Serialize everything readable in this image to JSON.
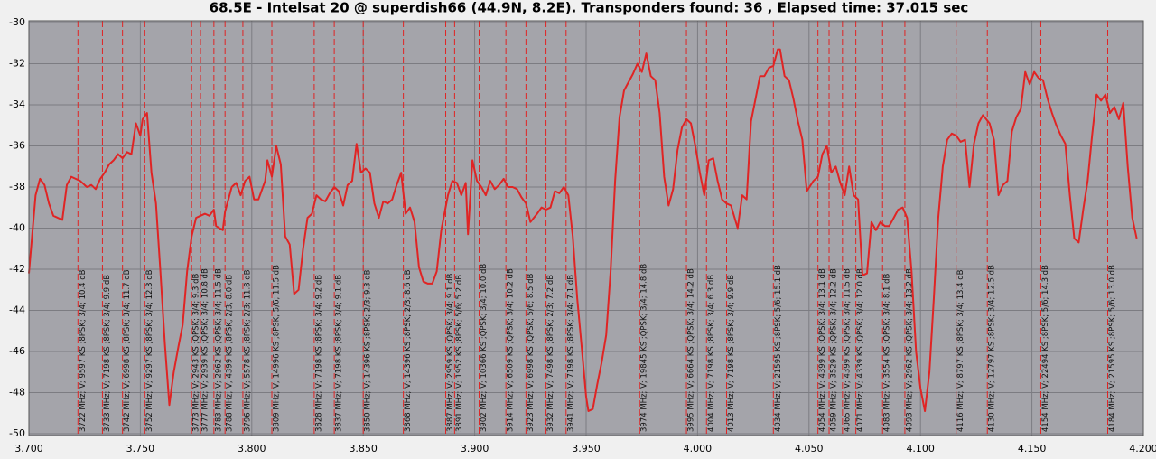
{
  "chart_data": {
    "type": "line",
    "title": "68.5E - Intelsat 20 @ superdish66 (44.9N, 8.2E). Transponders found: 36 , Elapsed time: 37.015 sec",
    "color": "#e02424",
    "grid": true,
    "xlim": [
      3.7,
      4.2
    ],
    "ylim": [
      -50,
      -30
    ],
    "xticks": [
      {
        "value": 3.7,
        "label": "3.700"
      },
      {
        "value": 3.75,
        "label": "3.750"
      },
      {
        "value": 3.8,
        "label": "3.800"
      },
      {
        "value": 3.85,
        "label": "3.850"
      },
      {
        "value": 3.9,
        "label": "3.900"
      },
      {
        "value": 3.95,
        "label": "3.950"
      },
      {
        "value": 4.0,
        "label": "4.000"
      },
      {
        "value": 4.05,
        "label": "4.050"
      },
      {
        "value": 4.1,
        "label": "4.100"
      },
      {
        "value": 4.15,
        "label": "4.150"
      },
      {
        "value": 4.2,
        "label": "4.200"
      }
    ],
    "yticks": [
      -30,
      -32,
      -34,
      -36,
      -38,
      -40,
      -42,
      -44,
      -46,
      -48,
      -50
    ],
    "x": [
      3.7,
      3.703,
      3.705,
      3.707,
      3.709,
      3.711,
      3.715,
      3.717,
      3.719,
      3.721,
      3.723,
      3.726,
      3.728,
      3.73,
      3.732,
      3.734,
      3.736,
      3.738,
      3.74,
      3.742,
      3.744,
      3.746,
      3.748,
      3.75,
      3.751,
      3.753,
      3.755,
      3.757,
      3.759,
      3.761,
      3.763,
      3.765,
      3.767,
      3.769,
      3.771,
      3.773,
      3.775,
      3.777,
      3.779,
      3.781,
      3.783,
      3.784,
      3.787,
      3.788,
      3.791,
      3.793,
      3.795,
      3.797,
      3.799,
      3.801,
      3.803,
      3.806,
      3.807,
      3.809,
      3.811,
      3.813,
      3.815,
      3.817,
      3.819,
      3.821,
      3.823,
      3.825,
      3.827,
      3.829,
      3.831,
      3.833,
      3.835,
      3.837,
      3.839,
      3.841,
      3.843,
      3.845,
      3.847,
      3.849,
      3.851,
      3.853,
      3.855,
      3.857,
      3.859,
      3.861,
      3.863,
      3.865,
      3.867,
      3.869,
      3.871,
      3.873,
      3.875,
      3.877,
      3.879,
      3.881,
      3.883,
      3.885,
      3.888,
      3.89,
      3.892,
      3.894,
      3.896,
      3.897,
      3.899,
      3.901,
      3.903,
      3.905,
      3.907,
      3.909,
      3.911,
      3.913,
      3.915,
      3.917,
      3.919,
      3.921,
      3.923,
      3.925,
      3.928,
      3.93,
      3.932,
      3.934,
      3.936,
      3.938,
      3.94,
      3.942,
      3.944,
      3.946,
      3.948,
      3.95,
      3.951,
      3.953,
      3.955,
      3.957,
      3.959,
      3.961,
      3.963,
      3.965,
      3.967,
      3.969,
      3.971,
      3.973,
      3.975,
      3.977,
      3.979,
      3.981,
      3.983,
      3.985,
      3.987,
      3.989,
      3.991,
      3.993,
      3.995,
      3.997,
      3.999,
      4.001,
      4.003,
      4.005,
      4.007,
      4.009,
      4.011,
      4.013,
      4.015,
      4.018,
      4.02,
      4.022,
      4.024,
      4.026,
      4.028,
      4.03,
      4.032,
      4.034,
      4.036,
      4.037,
      4.039,
      4.041,
      4.043,
      4.045,
      4.047,
      4.049,
      4.052,
      4.054,
      4.056,
      4.058,
      4.06,
      4.062,
      4.064,
      4.066,
      4.068,
      4.07,
      4.072,
      4.074,
      4.076,
      4.078,
      4.08,
      4.082,
      4.084,
      4.086,
      4.088,
      4.09,
      4.092,
      4.094,
      4.096,
      4.098,
      4.1,
      4.102,
      4.104,
      4.106,
      4.108,
      4.11,
      4.112,
      4.114,
      4.116,
      4.118,
      4.12,
      4.122,
      4.124,
      4.126,
      4.128,
      4.131,
      4.133,
      4.135,
      4.137,
      4.139,
      4.141,
      4.143,
      4.145,
      4.147,
      4.149,
      4.151,
      4.153,
      4.155,
      4.157,
      4.159,
      4.161,
      4.163,
      4.165,
      4.167,
      4.169,
      4.171,
      4.173,
      4.175,
      4.177,
      4.179,
      4.181,
      4.183,
      4.185,
      4.187,
      4.189,
      4.191,
      4.193,
      4.195,
      4.197
    ],
    "values": [
      -42.2,
      -38.4,
      -37.6,
      -37.9,
      -38.8,
      -39.4,
      -39.6,
      -37.9,
      -37.5,
      -37.6,
      -37.7,
      -38.0,
      -37.9,
      -38.1,
      -37.6,
      -37.3,
      -36.9,
      -36.7,
      -36.4,
      -36.6,
      -36.3,
      -36.4,
      -34.9,
      -35.5,
      -34.7,
      -34.4,
      -37.3,
      -38.8,
      -42.1,
      -45.6,
      -48.6,
      -47.0,
      -45.8,
      -44.7,
      -42.1,
      -40.4,
      -39.5,
      -39.4,
      -39.3,
      -39.4,
      -39.1,
      -39.9,
      -40.1,
      -39.2,
      -38.0,
      -37.8,
      -38.4,
      -37.7,
      -37.5,
      -38.6,
      -38.6,
      -37.7,
      -36.7,
      -37.5,
      -36.0,
      -36.9,
      -40.4,
      -40.8,
      -43.2,
      -43.0,
      -41.0,
      -39.5,
      -39.3,
      -38.4,
      -38.6,
      -38.7,
      -38.3,
      -38.0,
      -38.2,
      -38.9,
      -37.9,
      -37.7,
      -35.9,
      -37.3,
      -37.1,
      -37.3,
      -38.8,
      -39.5,
      -38.7,
      -38.8,
      -38.6,
      -37.9,
      -37.3,
      -39.3,
      -39.0,
      -39.7,
      -41.9,
      -42.6,
      -42.7,
      -42.7,
      -42.1,
      -40.1,
      -38.4,
      -37.7,
      -37.8,
      -38.4,
      -37.8,
      -40.3,
      -36.7,
      -37.7,
      -38.0,
      -38.4,
      -37.7,
      -38.1,
      -37.9,
      -37.6,
      -38.0,
      -38.0,
      -38.1,
      -38.5,
      -38.8,
      -39.7,
      -39.3,
      -39.0,
      -39.1,
      -39.0,
      -38.2,
      -38.3,
      -38.0,
      -38.4,
      -40.4,
      -43.4,
      -45.8,
      -48.2,
      -48.9,
      -48.8,
      -47.6,
      -46.5,
      -45.2,
      -42.1,
      -37.7,
      -34.6,
      -33.3,
      -32.9,
      -32.5,
      -32.0,
      -32.4,
      -31.5,
      -32.6,
      -32.8,
      -34.4,
      -37.5,
      -38.9,
      -38.1,
      -36.2,
      -35.1,
      -34.7,
      -34.9,
      -36.0,
      -37.3,
      -38.4,
      -36.7,
      -36.6,
      -37.7,
      -38.6,
      -38.8,
      -38.9,
      -40.0,
      -38.4,
      -38.6,
      -34.8,
      -33.7,
      -32.6,
      -32.6,
      -32.2,
      -32.1,
      -31.3,
      -31.3,
      -32.6,
      -32.8,
      -33.7,
      -34.8,
      -35.7,
      -38.2,
      -37.7,
      -37.5,
      -36.4,
      -36.0,
      -37.3,
      -37.0,
      -37.8,
      -38.4,
      -37.0,
      -38.4,
      -38.6,
      -42.3,
      -42.2,
      -39.7,
      -40.1,
      -39.7,
      -39.9,
      -39.9,
      -39.5,
      -39.1,
      -39.0,
      -39.5,
      -42.1,
      -46.0,
      -47.8,
      -48.9,
      -47.0,
      -43.4,
      -39.5,
      -37.0,
      -35.7,
      -35.4,
      -35.5,
      -35.8,
      -35.7,
      -38.0,
      -35.9,
      -34.9,
      -34.5,
      -34.9,
      -35.7,
      -38.4,
      -37.9,
      -37.7,
      -35.3,
      -34.6,
      -34.2,
      -32.4,
      -33.0,
      -32.4,
      -32.7,
      -32.8,
      -33.7,
      -34.4,
      -35.0,
      -35.5,
      -35.9,
      -38.4,
      -40.5,
      -40.7,
      -39.1,
      -37.7,
      -35.5,
      -33.5,
      -33.8,
      -33.5,
      -34.4,
      -34.1,
      -34.7,
      -33.9,
      -37.0,
      -39.5,
      -40.5
    ],
    "transponders": [
      {
        "x": 3.722,
        "label": "3722 MHz; V; 9597 KS ;8PSK; 3/4; 10.4 dB"
      },
      {
        "x": 3.733,
        "label": "3733 MHz; V; 7198 KS ;8PSK; 3/4; 9.9 dB"
      },
      {
        "x": 3.742,
        "label": "3742 MHz; V; 6998 KS ;8PSK; 3/4; 11.7 dB"
      },
      {
        "x": 3.752,
        "label": "3752 MHz; V; 9297 KS ;8PSK; 3/4; 12.3 dB"
      },
      {
        "x": 3.773,
        "label": "3773 MHz; V; 2943 KS ;QPSK; 3/4; 9.3 dB"
      },
      {
        "x": 3.777,
        "label": "3777 MHz; V; 2939 KS ;QPSK; 3/4; 10.8 dB"
      },
      {
        "x": 3.783,
        "label": "3783 MHz; V; 2962 KS ;QPSK; 3/4; 11.5 dB"
      },
      {
        "x": 3.788,
        "label": "3788 MHz; V; 4399 KS ;8PSK; 2/3; 8.0 dB"
      },
      {
        "x": 3.796,
        "label": "3796 MHz; V; 5578 KS ;8PSK; 2/3; 11.8 dB"
      },
      {
        "x": 3.809,
        "label": "3809 MHz; V; 14996 KS ;8PSK; 5/6; 11.5 dB"
      },
      {
        "x": 3.828,
        "label": "3828 MHz; V; 7198 KS ;8PSK; 3/4; 9.2 dB"
      },
      {
        "x": 3.837,
        "label": "3837 MHz; V; 7198 KS ;8PSK; 3/4; 9.1 dB"
      },
      {
        "x": 3.85,
        "label": "3850 MHz; V; 14396 KS ;8PSK; 2/3; 9.3 dB"
      },
      {
        "x": 3.868,
        "label": "3868 MHz; V; 14396 KS ;8PSK; 2/3; 8.6 dB"
      },
      {
        "x": 3.887,
        "label": "3887 MHz; V; 2959 KS ;QPSK; 3/4; 9.1 dB"
      },
      {
        "x": 3.891,
        "label": "3891 MHz; V; 1952 KS ;8PSK; 5/6; 5.2 dB"
      },
      {
        "x": 3.902,
        "label": "3902 MHz; V; 10366 KS ;QPSK; 3/4; 10.0 dB"
      },
      {
        "x": 3.914,
        "label": "3914 MHz; V; 6509 KS ;QPSK; 3/4; 10.2 dB"
      },
      {
        "x": 3.923,
        "label": "3923 MHz; V; 6998 KS ;QPSK; 5/6; 8.5 dB"
      },
      {
        "x": 3.932,
        "label": "3932 MHz; V; 7498 KS ;8PSK; 2/3; 7.2 dB"
      },
      {
        "x": 3.941,
        "label": "3941 MHz; V; 7198 KS ;8PSK; 3/4; 7.1 dB"
      },
      {
        "x": 3.974,
        "label": "3974 MHz; V; 19845 KS ;QPSK; 3/4; 14.8 dB"
      },
      {
        "x": 3.995,
        "label": "3995 MHz; V; 6664 KS ;QPSK; 3/4; 14.2 dB"
      },
      {
        "x": 4.004,
        "label": "4004 MHz; V; 7198 KS ;8PSK; 3/4; 6.3 dB"
      },
      {
        "x": 4.013,
        "label": "4013 MHz; V; 7198 KS ;8PSK; 3/4; 9.9 dB"
      },
      {
        "x": 4.034,
        "label": "4034 MHz; V; 21595 KS ;8PSK; 5/6; 15.1 dB"
      },
      {
        "x": 4.054,
        "label": "4054 MHz; V; 4399 KS ;QPSK; 3/4; 13.1 dB"
      },
      {
        "x": 4.059,
        "label": "4059 MHz; V; 3529 KS ;QPSK; 3/4; 12.2 dB"
      },
      {
        "x": 4.065,
        "label": "4065 MHz; V; 4399 KS ;QPSK; 3/4; 11.5 dB"
      },
      {
        "x": 4.071,
        "label": "4071 MHz; V; 4339 KS ;QPSK; 3/4; 12.0 dB"
      },
      {
        "x": 4.083,
        "label": "4083 MHz; V; 3554 KS ;QPSK; 3/4; 8.1 dB"
      },
      {
        "x": 4.093,
        "label": "4093 MHz; V; 2962 KS ;QPSK; 3/4; 13.2 dB"
      },
      {
        "x": 4.116,
        "label": "4116 MHz; V; 8797 KS ;8PSK; 3/4; 13.4 dB"
      },
      {
        "x": 4.13,
        "label": "4130 MHz; V; 12797 KS ;8PSK; 3/4; 12.5 dB"
      },
      {
        "x": 4.154,
        "label": "4154 MHz; V; 22494 KS ;8PSK; 5/6; 14.3 dB"
      },
      {
        "x": 4.184,
        "label": "4184 MHz; V; 21595 KS ;8PSK; 5/6; 13.0 dB"
      }
    ]
  }
}
